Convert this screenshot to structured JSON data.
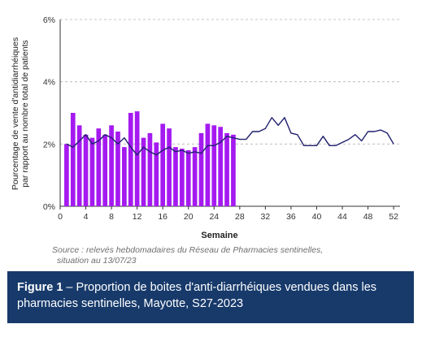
{
  "chart_data": {
    "type": "bar+line",
    "xlabel": "Semaine",
    "ylabel_lines": [
      "Pourcentage de vente d'antidiarrhéiques",
      "par rapport au nombre total de patients"
    ],
    "xlim": [
      0,
      53
    ],
    "ylim": [
      0,
      6
    ],
    "x_ticks": [
      0,
      4,
      8,
      12,
      16,
      20,
      24,
      28,
      32,
      36,
      40,
      44,
      48,
      52
    ],
    "x_tick_labels": [
      "0",
      "4",
      "8",
      "12",
      "16",
      "20",
      "24",
      "28",
      "32",
      "36",
      "40",
      "44",
      "48",
      "52"
    ],
    "y_ticks": [
      0,
      2,
      4,
      6
    ],
    "y_tick_labels": [
      "0%",
      "2%",
      "4%",
      "6%"
    ],
    "grid": "horizontal dashed",
    "colors": {
      "bars": "#a51af0",
      "line": "#1f1f6e",
      "grid": "#b4b4b4"
    },
    "series": [
      {
        "type": "bar",
        "x": [
          1,
          2,
          3,
          4,
          5,
          6,
          7,
          8,
          9,
          10,
          11,
          12,
          13,
          14,
          15,
          16,
          17,
          18,
          19,
          20,
          21,
          22,
          23,
          24,
          25,
          26,
          27
        ],
        "values": [
          2.0,
          3.0,
          2.6,
          2.3,
          2.2,
          2.5,
          2.3,
          2.6,
          2.4,
          1.9,
          3.0,
          3.05,
          2.2,
          2.35,
          2.05,
          2.65,
          2.5,
          1.9,
          1.85,
          1.8,
          1.9,
          2.35,
          2.65,
          2.6,
          2.55,
          2.35,
          2.3
        ]
      },
      {
        "type": "line",
        "x": [
          1,
          2,
          3,
          4,
          5,
          6,
          7,
          8,
          9,
          10,
          11,
          12,
          13,
          14,
          15,
          16,
          17,
          18,
          19,
          20,
          21,
          22,
          23,
          24,
          25,
          26,
          27,
          28,
          29,
          30,
          31,
          32,
          33,
          34,
          35,
          36,
          37,
          38,
          39,
          40,
          41,
          42,
          43,
          44,
          45,
          46,
          47,
          48,
          49,
          50,
          51,
          52
        ],
        "values": [
          2.0,
          1.9,
          2.1,
          2.3,
          2.0,
          2.1,
          2.3,
          2.2,
          2.0,
          2.2,
          1.9,
          1.65,
          1.9,
          1.75,
          1.65,
          1.8,
          1.9,
          1.75,
          1.8,
          1.7,
          1.75,
          1.7,
          1.95,
          1.95,
          2.05,
          2.25,
          2.2,
          2.15,
          2.15,
          2.4,
          2.4,
          2.5,
          2.85,
          2.6,
          2.85,
          2.35,
          2.3,
          1.95,
          1.95,
          1.95,
          2.25,
          1.95,
          1.95,
          2.05,
          2.15,
          2.3,
          2.1,
          2.4,
          2.4,
          2.45,
          2.35,
          2.0
        ]
      }
    ]
  },
  "source_text": "Source :  relevés hebdomadaires du Réseau de Pharmacies sentinelles,",
  "source_text_2": "situation au  13/07/23",
  "caption": {
    "label": "Figure 1",
    "text": " –  Proportion de boites d'anti-diarrhéiques vendues dans les pharmacies sentinelles, Mayotte, S27-2023"
  }
}
